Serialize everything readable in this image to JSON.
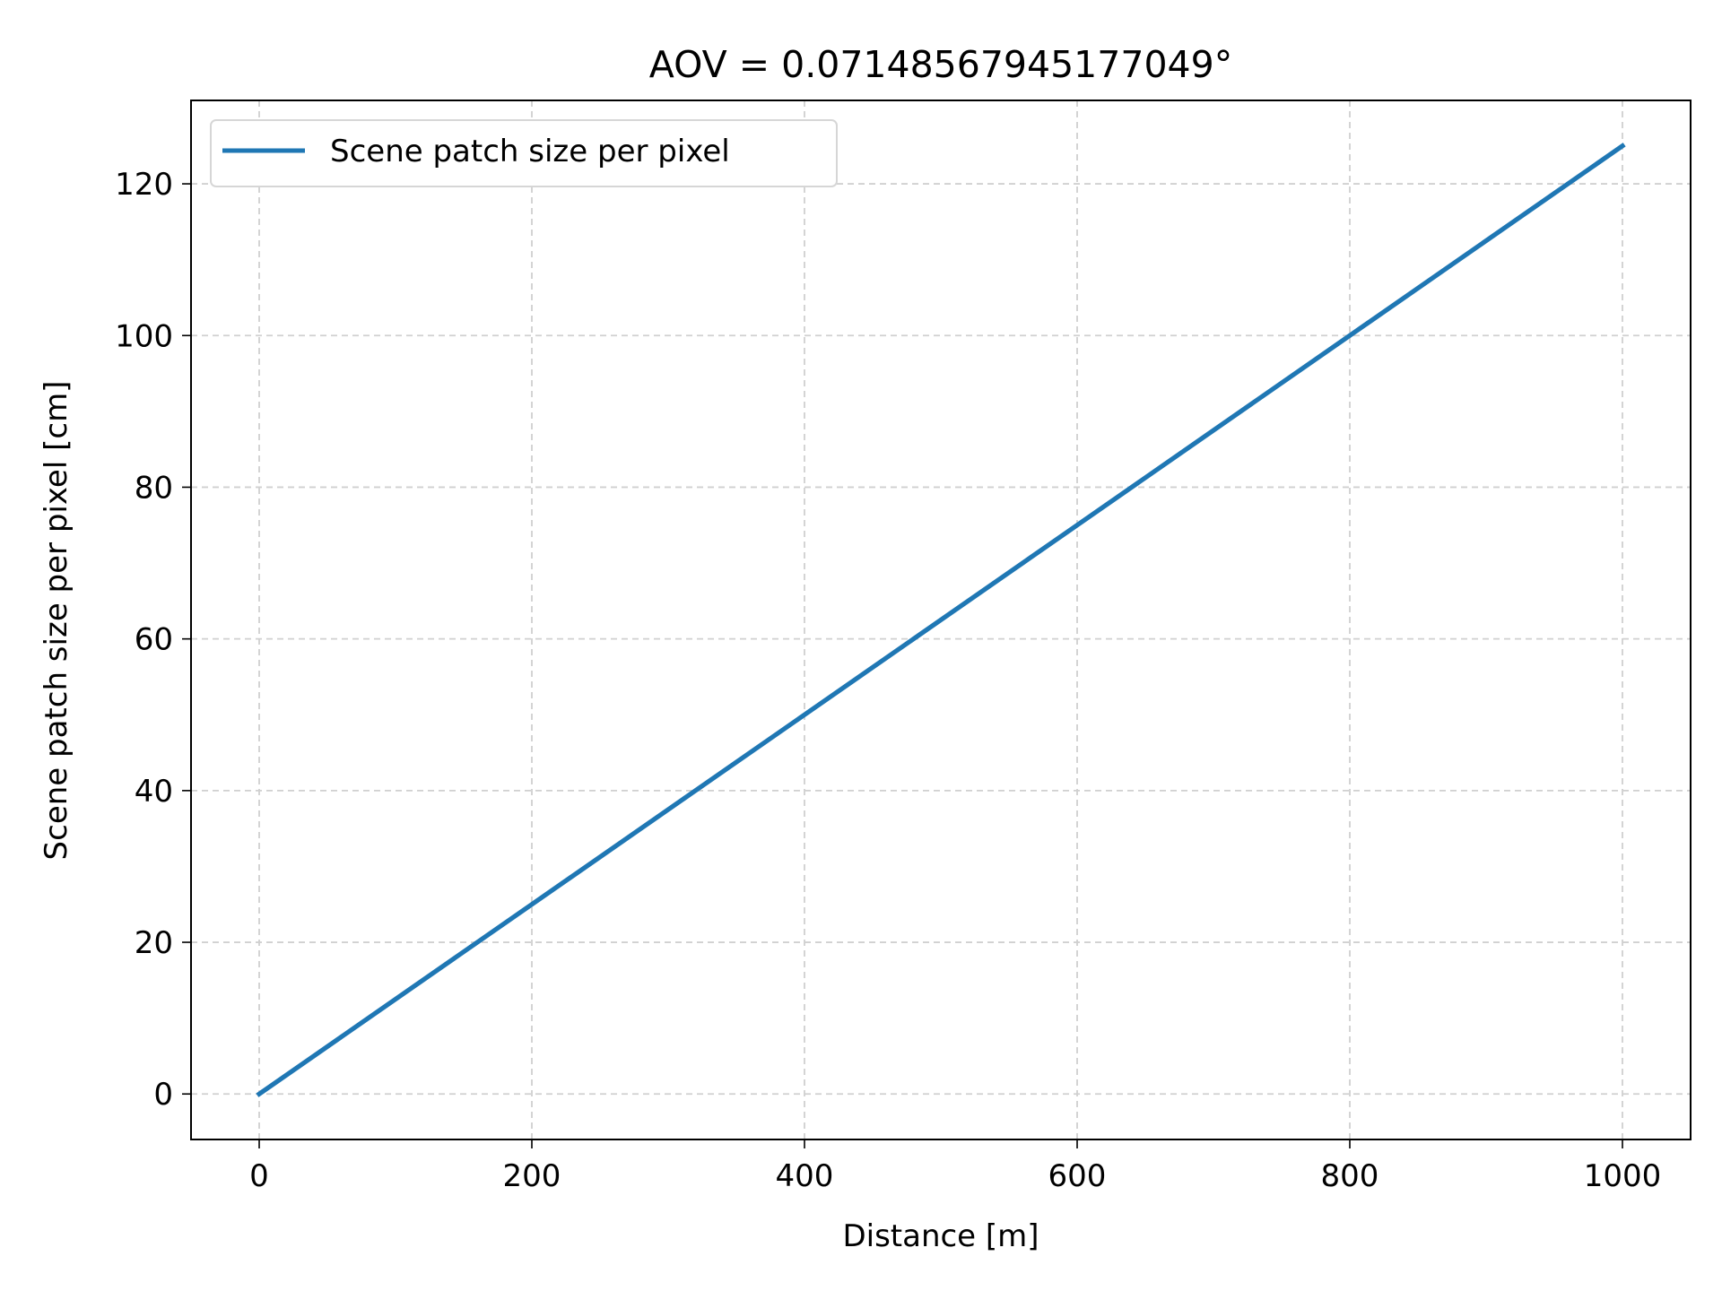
{
  "chart_data": {
    "type": "line",
    "title": "AOV = 0.07148567945177049°",
    "xlabel": "Distance [m]",
    "ylabel": "Scene patch size per pixel [cm]",
    "xlim": [
      -50,
      1050
    ],
    "ylim": [
      -6,
      131
    ],
    "xticks": [
      0,
      200,
      400,
      600,
      800,
      1000
    ],
    "xtick_labels": [
      "0",
      "200",
      "400",
      "600",
      "800",
      "1000"
    ],
    "yticks": [
      0,
      20,
      40,
      60,
      80,
      100,
      120
    ],
    "ytick_labels": [
      "0",
      "20",
      "40",
      "60",
      "80",
      "100",
      "120"
    ],
    "grid": true,
    "legend_position": "top-left",
    "series": [
      {
        "name": "Scene patch size per pixel",
        "color": "#1f77b4",
        "x": [
          0,
          200,
          400,
          600,
          800,
          1000
        ],
        "y": [
          0,
          25,
          50,
          75,
          100,
          125
        ]
      }
    ]
  }
}
